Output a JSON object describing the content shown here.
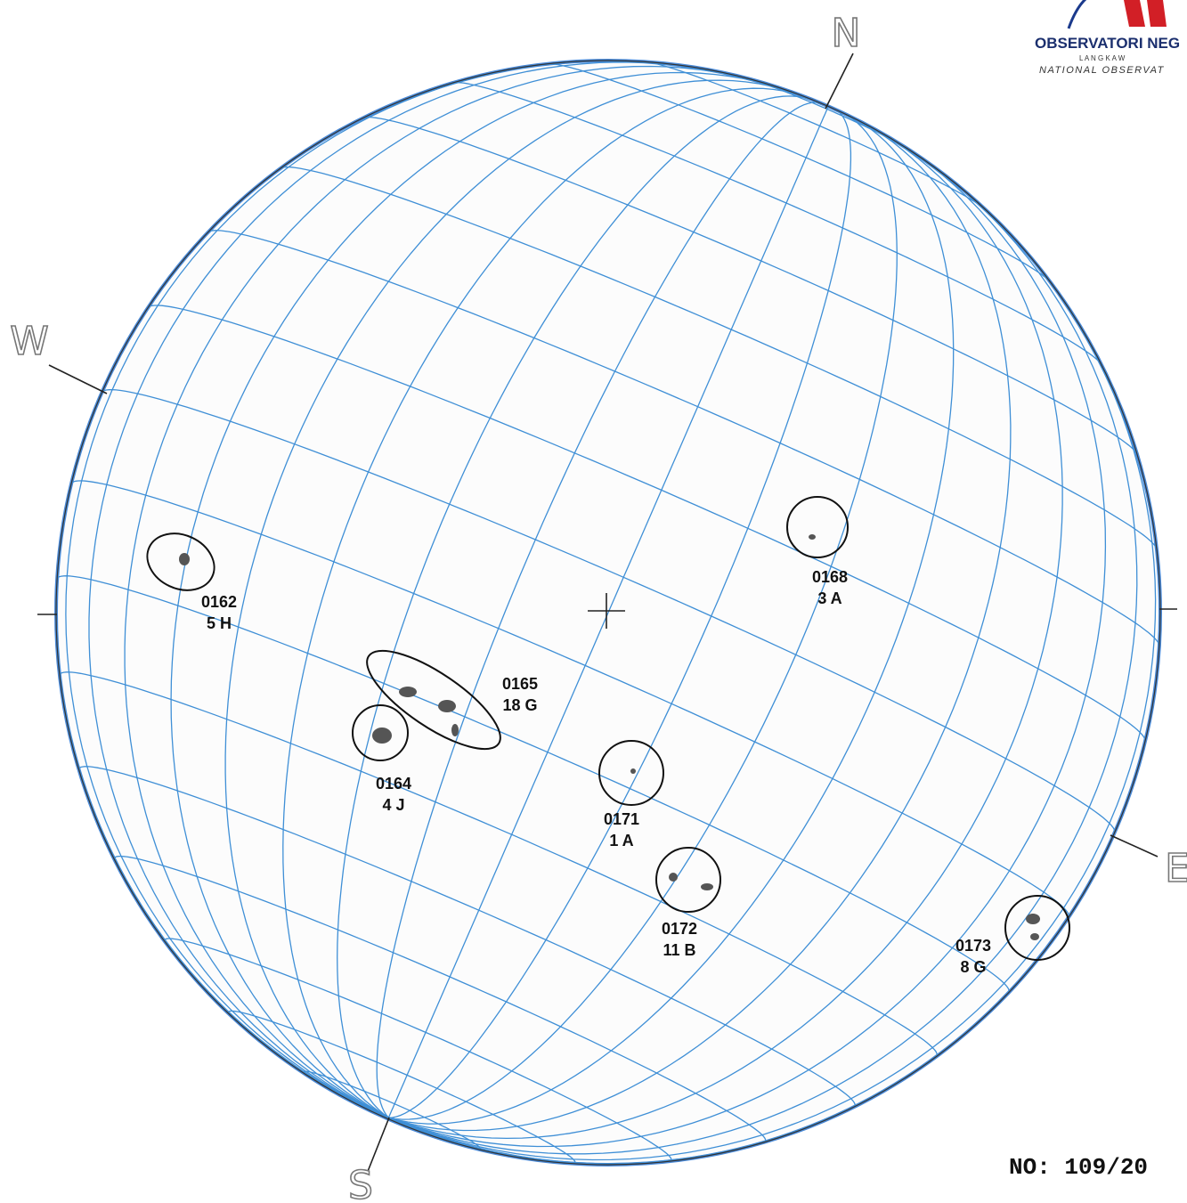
{
  "logo": {
    "name": "OBSERVATORI NEG",
    "place": "L A N G K A W",
    "subtitle": "NATIONAL OBSERVAT"
  },
  "compass": {
    "north": "N",
    "west": "W",
    "east": "E",
    "south": "S"
  },
  "groups": [
    {
      "id": "0162",
      "class": "5 H"
    },
    {
      "id": "0168",
      "class": "3 A"
    },
    {
      "id": "0165",
      "class": "18 G"
    },
    {
      "id": "0164",
      "class": "4 J"
    },
    {
      "id": "0171",
      "class": "1 A"
    },
    {
      "id": "0172",
      "class": "11 B"
    },
    {
      "id": "0173",
      "class": "8 G"
    }
  ],
  "report_number": "NO: 109/20"
}
